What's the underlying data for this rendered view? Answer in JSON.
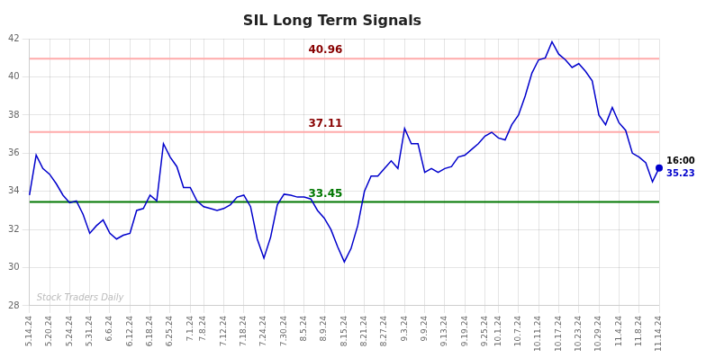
{
  "chart_data": {
    "type": "line",
    "title": "SIL Long Term Signals",
    "categories": [
      "5.14.24",
      null,
      null,
      "5.20.24",
      null,
      null,
      "5.24.24",
      null,
      null,
      "5.31.24",
      null,
      null,
      "6.6.24",
      null,
      null,
      "6.12.24",
      null,
      null,
      "6.18.24",
      null,
      null,
      "6.25.24",
      null,
      null,
      "7.1.24",
      null,
      "7.8.24",
      null,
      null,
      "7.12.24",
      null,
      null,
      "7.18.24",
      null,
      null,
      "7.24.24",
      null,
      null,
      "7.30.24",
      null,
      null,
      "8.5.24",
      null,
      null,
      "8.9.24",
      null,
      null,
      "8.15.24",
      null,
      null,
      "8.21.24",
      null,
      null,
      "8.27.24",
      null,
      null,
      "9.3.24",
      null,
      null,
      "9.9.24",
      null,
      null,
      "9.13.24",
      null,
      null,
      "9.19.24",
      null,
      null,
      "9.25.24",
      null,
      "10.1.24",
      null,
      null,
      "10.7.24",
      null,
      null,
      "10.11.24",
      null,
      null,
      "10.17.24",
      null,
      null,
      "10.23.24",
      null,
      null,
      "10.29.24",
      null,
      null,
      "11.4.24",
      null,
      null,
      "11.8.24",
      null,
      null,
      "11.14.24"
    ],
    "values": [
      33.8,
      35.9,
      35.2,
      34.9,
      34.4,
      33.8,
      33.4,
      33.5,
      32.8,
      31.8,
      32.2,
      32.5,
      31.8,
      31.5,
      31.7,
      31.8,
      33.0,
      33.1,
      33.8,
      33.5,
      36.5,
      35.8,
      35.3,
      34.2,
      34.2,
      33.5,
      33.2,
      33.1,
      33.0,
      33.1,
      33.3,
      33.7,
      33.8,
      33.2,
      31.5,
      30.5,
      31.6,
      33.3,
      33.85,
      33.8,
      33.7,
      33.7,
      33.6,
      33.0,
      32.6,
      32.0,
      31.1,
      30.3,
      31.0,
      32.2,
      34.0,
      34.8,
      34.8,
      35.2,
      35.6,
      35.2,
      37.3,
      36.5,
      36.5,
      35.0,
      35.2,
      35.0,
      35.2,
      35.3,
      35.8,
      35.9,
      36.2,
      36.5,
      36.9,
      37.1,
      36.8,
      36.7,
      37.5,
      38.0,
      39.0,
      40.2,
      40.9,
      41.0,
      41.85,
      41.2,
      40.9,
      40.5,
      40.7,
      40.3,
      39.8,
      38.0,
      37.5,
      38.4,
      37.6,
      37.2,
      36.0,
      35.8,
      35.5,
      34.5,
      35.23
    ],
    "color": "#0000cc",
    "ylim": [
      28,
      42
    ],
    "yticks": [
      28,
      30,
      32,
      34,
      36,
      38,
      40,
      42
    ],
    "grid": true,
    "hlines": [
      {
        "value": 40.96,
        "label": "40.96",
        "color": "#ffaaaa",
        "label_color": "#880000"
      },
      {
        "value": 37.11,
        "label": "37.11",
        "color": "#ffaaaa",
        "label_color": "#880000"
      },
      {
        "value": 33.45,
        "label": "33.45",
        "color": "#007700",
        "label_color": "#007700"
      }
    ],
    "last_point": {
      "value": 35.23,
      "time_label": "16:00",
      "label": "35.23"
    },
    "watermark": "Stock Traders Daily"
  }
}
